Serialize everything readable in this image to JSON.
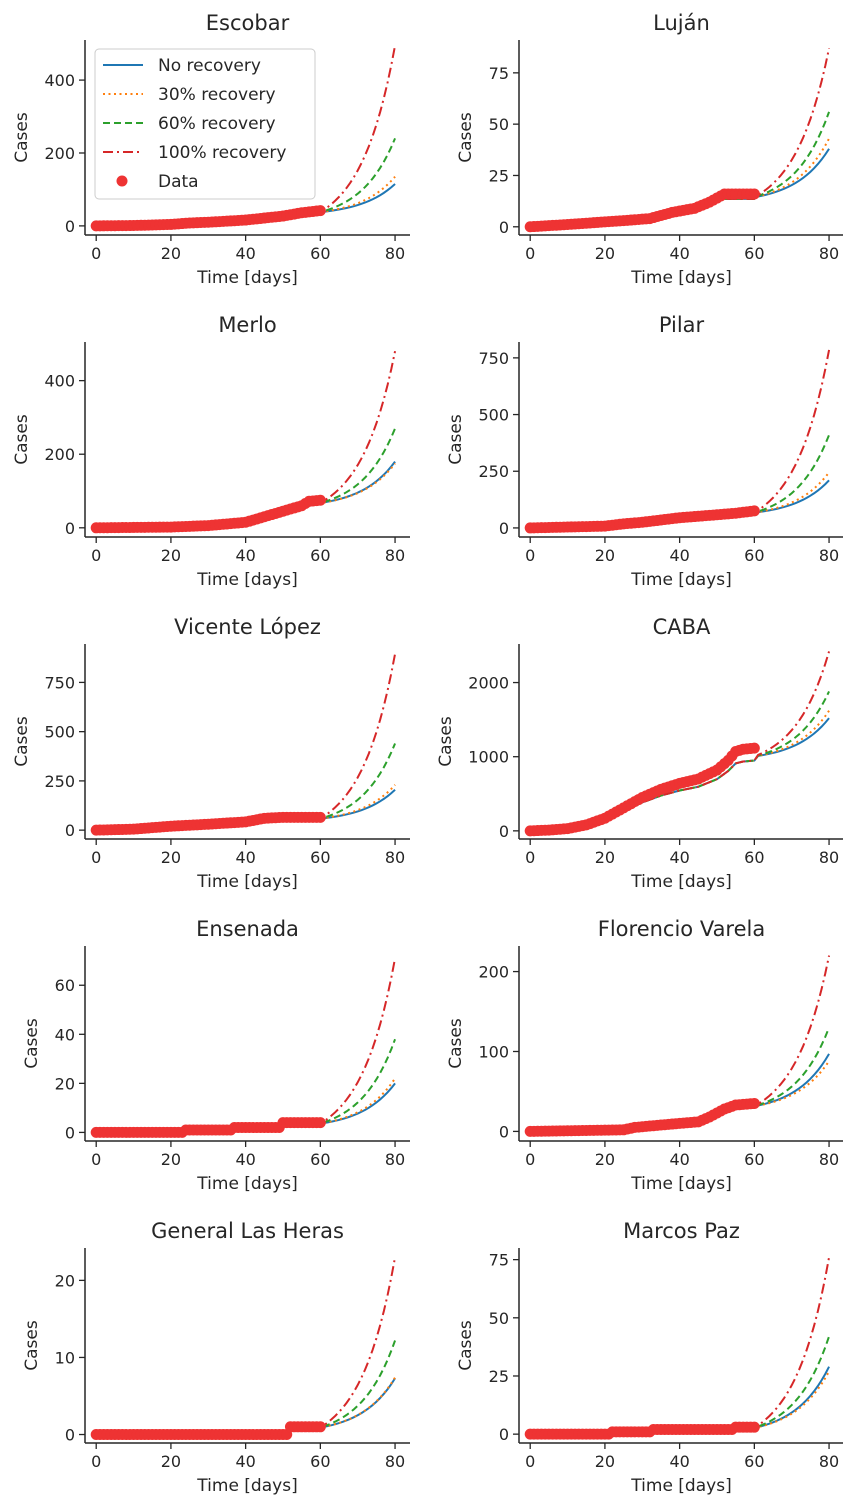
{
  "colors": {
    "no_recovery": "#1f77b4",
    "r30": "#ff7f0e",
    "r60": "#2ca02c",
    "r100": "#d62728",
    "data": "#ee3333"
  },
  "legend": {
    "placement": "top-left (Escobar panel)",
    "entries": [
      {
        "key": "no_recovery",
        "label": "No recovery",
        "style": "solid"
      },
      {
        "key": "r30",
        "label": "30% recovery",
        "style": "dotted"
      },
      {
        "key": "r60",
        "label": "60% recovery",
        "style": "dashed"
      },
      {
        "key": "r100",
        "label": "100% recovery",
        "style": "dashdot"
      },
      {
        "key": "data",
        "label": "Data",
        "style": "marker"
      }
    ]
  },
  "chart_data": [
    {
      "type": "line",
      "title": "Escobar",
      "xlabel": "Time [days]",
      "ylabel": "Cases",
      "xlim": [
        -3,
        84
      ],
      "ylim": [
        -25,
        510
      ],
      "xticks": [
        0,
        20,
        40,
        60,
        80
      ],
      "yticks": [
        0,
        200,
        400
      ],
      "data_points": [
        [
          0,
          0
        ],
        [
          10,
          1
        ],
        [
          20,
          4
        ],
        [
          25,
          8
        ],
        [
          30,
          10
        ],
        [
          40,
          16
        ],
        [
          50,
          27
        ],
        [
          55,
          36
        ],
        [
          60,
          42
        ]
      ],
      "series": [
        {
          "key": "no_recovery",
          "end": 115
        },
        {
          "key": "r30",
          "end": 135
        },
        {
          "key": "r60",
          "end": 240
        },
        {
          "key": "r100",
          "end": 495
        }
      ]
    },
    {
      "type": "line",
      "title": "Luján",
      "xlabel": "Time [days]",
      "ylabel": "Cases",
      "xlim": [
        -3,
        84
      ],
      "ylim": [
        -4,
        91
      ],
      "xticks": [
        0,
        20,
        40,
        60,
        80
      ],
      "yticks": [
        0,
        25,
        50,
        75
      ],
      "data_points": [
        [
          0,
          0
        ],
        [
          9,
          1
        ],
        [
          25,
          3
        ],
        [
          32,
          4
        ],
        [
          38,
          7
        ],
        [
          44,
          9
        ],
        [
          48,
          12
        ],
        [
          52,
          16
        ],
        [
          60,
          16
        ]
      ],
      "series": [
        {
          "key": "no_recovery",
          "end": 38
        },
        {
          "key": "r30",
          "end": 43
        },
        {
          "key": "r60",
          "end": 56
        },
        {
          "key": "r100",
          "end": 87
        }
      ]
    },
    {
      "type": "line",
      "title": "Merlo",
      "xlabel": "Time [days]",
      "ylabel": "Cases",
      "xlim": [
        -3,
        84
      ],
      "ylim": [
        -25,
        505
      ],
      "xticks": [
        0,
        20,
        40,
        60,
        80
      ],
      "yticks": [
        0,
        200,
        400
      ],
      "data_points": [
        [
          0,
          0
        ],
        [
          20,
          2
        ],
        [
          30,
          6
        ],
        [
          40,
          15
        ],
        [
          45,
          30
        ],
        [
          50,
          45
        ],
        [
          55,
          60
        ],
        [
          57,
          72
        ],
        [
          60,
          75
        ]
      ],
      "series": [
        {
          "key": "no_recovery",
          "end": 180
        },
        {
          "key": "r30",
          "end": 175
        },
        {
          "key": "r60",
          "end": 270
        },
        {
          "key": "r100",
          "end": 480
        }
      ]
    },
    {
      "type": "line",
      "title": "Pilar",
      "xlabel": "Time [days]",
      "ylabel": "Cases",
      "xlim": [
        -3,
        84
      ],
      "ylim": [
        -40,
        820
      ],
      "xticks": [
        0,
        20,
        40,
        60,
        80
      ],
      "yticks": [
        0,
        250,
        500,
        750
      ],
      "data_points": [
        [
          0,
          0
        ],
        [
          20,
          8
        ],
        [
          25,
          18
        ],
        [
          30,
          25
        ],
        [
          40,
          45
        ],
        [
          50,
          58
        ],
        [
          55,
          65
        ],
        [
          60,
          75
        ]
      ],
      "series": [
        {
          "key": "no_recovery",
          "end": 210
        },
        {
          "key": "r30",
          "end": 245
        },
        {
          "key": "r60",
          "end": 410
        },
        {
          "key": "r100",
          "end": 785
        }
      ]
    },
    {
      "type": "line",
      "title": "Vicente López",
      "xlabel": "Time [days]",
      "ylabel": "Cases",
      "xlim": [
        -3,
        84
      ],
      "ylim": [
        -45,
        945
      ],
      "xticks": [
        0,
        20,
        40,
        60,
        80
      ],
      "yticks": [
        0,
        250,
        500,
        750
      ],
      "data_points": [
        [
          0,
          0
        ],
        [
          10,
          5
        ],
        [
          20,
          20
        ],
        [
          30,
          30
        ],
        [
          40,
          42
        ],
        [
          45,
          60
        ],
        [
          50,
          65
        ],
        [
          60,
          65
        ]
      ],
      "series": [
        {
          "key": "no_recovery",
          "end": 205
        },
        {
          "key": "r30",
          "end": 230
        },
        {
          "key": "r60",
          "end": 440
        },
        {
          "key": "r100",
          "end": 895
        }
      ]
    },
    {
      "type": "line",
      "title": "CABA",
      "xlabel": "Time [days]",
      "ylabel": "Cases",
      "xlim": [
        -3,
        84
      ],
      "ylim": [
        -110,
        2520
      ],
      "xticks": [
        0,
        20,
        40,
        60,
        80
      ],
      "yticks": [
        0,
        1000,
        2000
      ],
      "data_points": [
        [
          0,
          0
        ],
        [
          5,
          10
        ],
        [
          10,
          30
        ],
        [
          15,
          80
        ],
        [
          20,
          170
        ],
        [
          25,
          310
        ],
        [
          30,
          450
        ],
        [
          35,
          560
        ],
        [
          40,
          640
        ],
        [
          45,
          700
        ],
        [
          50,
          820
        ],
        [
          53,
          950
        ],
        [
          55,
          1070
        ],
        [
          57,
          1100
        ],
        [
          60,
          1115
        ]
      ],
      "series": [
        {
          "key": "no_recovery",
          "end": 1520
        },
        {
          "key": "r30",
          "end": 1620
        },
        {
          "key": "r60",
          "end": 1880
        },
        {
          "key": "r100",
          "end": 2420
        }
      ]
    },
    {
      "type": "line",
      "title": "Ensenada",
      "xlabel": "Time [days]",
      "ylabel": "Cases",
      "xlim": [
        -3,
        84
      ],
      "ylim": [
        -3.5,
        76
      ],
      "xticks": [
        0,
        20,
        40,
        60,
        80
      ],
      "yticks": [
        0,
        20,
        40,
        60
      ],
      "data_points": [
        [
          0,
          0
        ],
        [
          23,
          0
        ],
        [
          24,
          1
        ],
        [
          36,
          1
        ],
        [
          37,
          2
        ],
        [
          49,
          2
        ],
        [
          50,
          4
        ],
        [
          60,
          4
        ]
      ],
      "series": [
        {
          "key": "no_recovery",
          "end": 20
        },
        {
          "key": "r30",
          "end": 22
        },
        {
          "key": "r60",
          "end": 38
        },
        {
          "key": "r100",
          "end": 71
        }
      ]
    },
    {
      "type": "line",
      "title": "Florencio Varela",
      "xlabel": "Time [days]",
      "ylabel": "Cases",
      "xlim": [
        -3,
        84
      ],
      "ylim": [
        -12,
        232
      ],
      "xticks": [
        0,
        20,
        40,
        60,
        80
      ],
      "yticks": [
        0,
        100,
        200
      ],
      "data_points": [
        [
          0,
          0
        ],
        [
          25,
          2
        ],
        [
          28,
          5
        ],
        [
          35,
          8
        ],
        [
          40,
          10
        ],
        [
          45,
          12
        ],
        [
          48,
          18
        ],
        [
          52,
          28
        ],
        [
          55,
          33
        ],
        [
          60,
          35
        ]
      ],
      "series": [
        {
          "key": "no_recovery",
          "end": 97
        },
        {
          "key": "r30",
          "end": 88
        },
        {
          "key": "r60",
          "end": 130
        },
        {
          "key": "r100",
          "end": 220
        }
      ]
    },
    {
      "type": "line",
      "title": "General Las Heras",
      "xlabel": "Time [days]",
      "ylabel": "Cases",
      "xlim": [
        -3,
        84
      ],
      "ylim": [
        -1.1,
        24.2
      ],
      "xticks": [
        0,
        20,
        40,
        60,
        80
      ],
      "yticks": [
        0,
        10,
        20
      ],
      "data_points": [
        [
          0,
          0
        ],
        [
          51,
          0
        ],
        [
          52,
          1
        ],
        [
          60,
          1
        ]
      ],
      "series": [
        {
          "key": "no_recovery",
          "end": 7.3
        },
        {
          "key": "r30",
          "end": 7.4
        },
        {
          "key": "r60",
          "end": 12.2
        },
        {
          "key": "r100",
          "end": 23
        }
      ]
    },
    {
      "type": "line",
      "title": "Marcos Paz",
      "xlabel": "Time [days]",
      "ylabel": "Cases",
      "xlim": [
        -3,
        84
      ],
      "ylim": [
        -3.8,
        80
      ],
      "xticks": [
        0,
        20,
        40,
        60,
        80
      ],
      "yticks": [
        0,
        25,
        50,
        75
      ],
      "data_points": [
        [
          0,
          0
        ],
        [
          21,
          0
        ],
        [
          22,
          1
        ],
        [
          32,
          1
        ],
        [
          33,
          2
        ],
        [
          54,
          2
        ],
        [
          55,
          3
        ],
        [
          60,
          3
        ]
      ],
      "series": [
        {
          "key": "no_recovery",
          "end": 29
        },
        {
          "key": "r30",
          "end": 27
        },
        {
          "key": "r60",
          "end": 42
        },
        {
          "key": "r100",
          "end": 76
        }
      ]
    }
  ]
}
